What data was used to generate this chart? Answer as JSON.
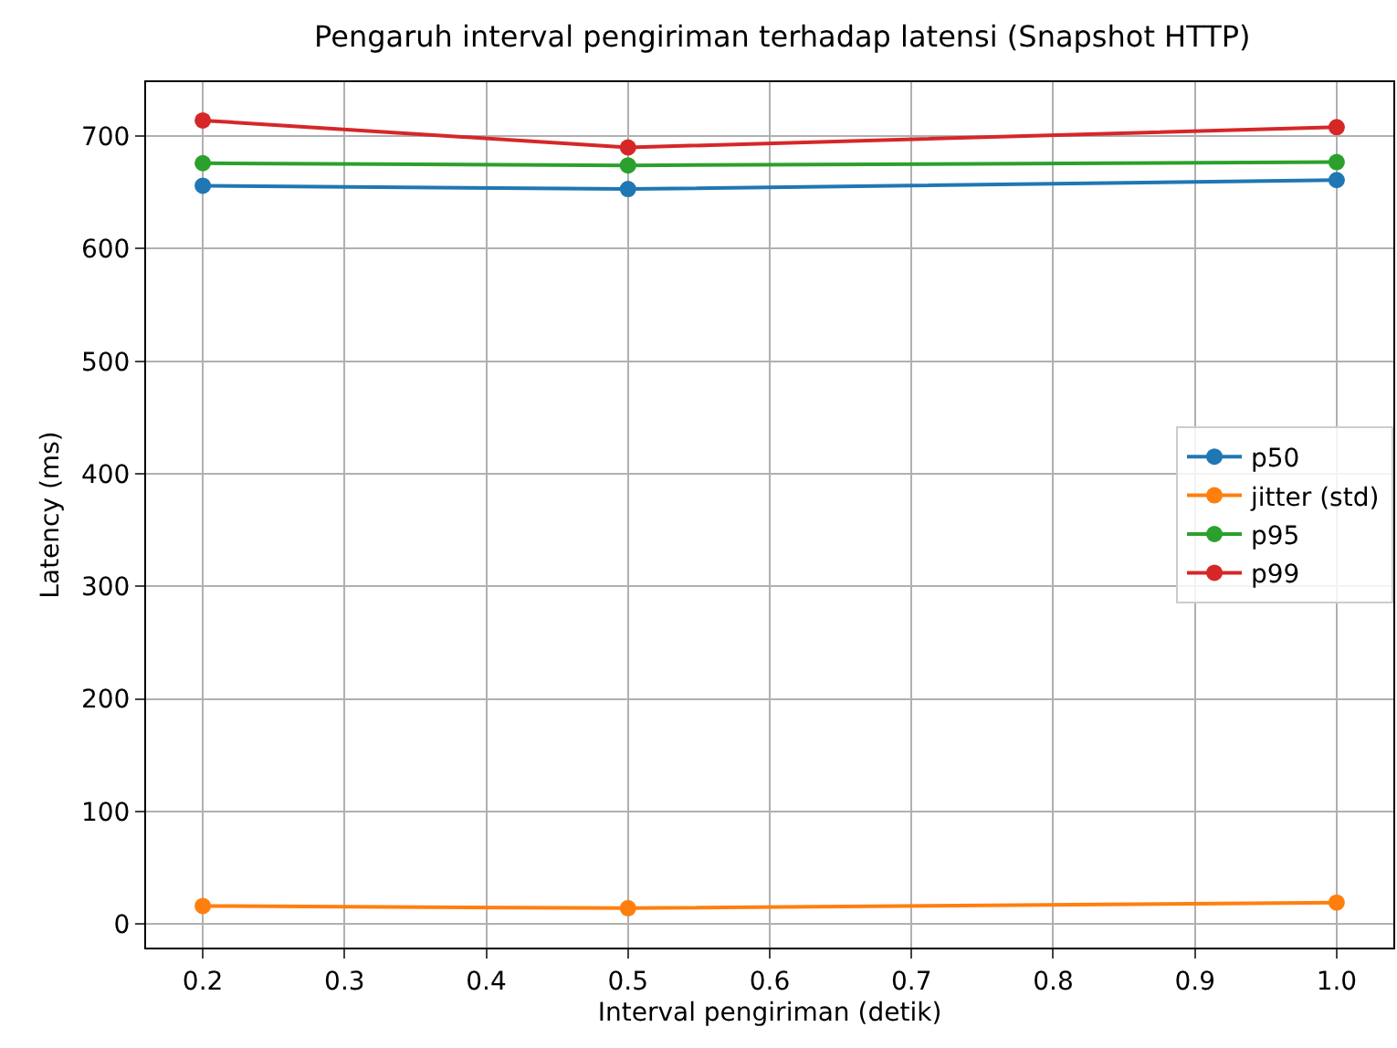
{
  "chart_data": {
    "type": "line",
    "title": "Pengaruh interval pengiriman terhadap latensi (Snapshot HTTP)",
    "xlabel": "Interval pengiriman (detik)",
    "ylabel": "Latency (ms)",
    "x": [
      0.2,
      0.5,
      1.0
    ],
    "series": [
      {
        "name": "p50",
        "color": "#1f77b4",
        "values": [
          656,
          653,
          661
        ]
      },
      {
        "name": "jitter (std)",
        "color": "#ff7f0e",
        "values": [
          16,
          14,
          19
        ]
      },
      {
        "name": "p95",
        "color": "#2ca02c",
        "values": [
          676,
          674,
          677
        ]
      },
      {
        "name": "p99",
        "color": "#d62728",
        "values": [
          714,
          690,
          708
        ]
      }
    ],
    "xlim": [
      0.16,
      1.04
    ],
    "ylim": [
      -21,
      748
    ],
    "xticks": [
      0.2,
      0.3,
      0.4,
      0.5,
      0.6,
      0.7,
      0.8,
      0.9,
      {
        "value": 1.0,
        "label": "1.0"
      }
    ],
    "yticks": [
      0,
      100,
      200,
      300,
      400,
      500,
      600,
      700
    ],
    "grid": true,
    "legend": "right",
    "marker": "circle",
    "line_style": "solid"
  }
}
